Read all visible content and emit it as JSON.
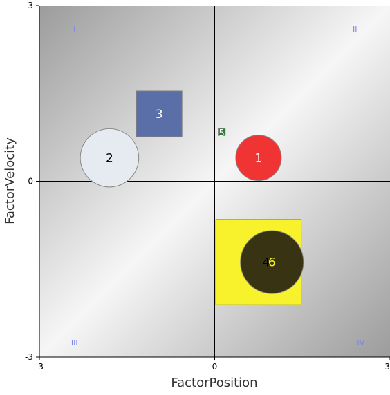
{
  "chart_data": {
    "type": "bubble",
    "xlabel": "FactorPosition",
    "ylabel": "FactorVelocity",
    "xlim": [
      -3,
      3
    ],
    "ylim": [
      -3,
      3
    ],
    "x_ticks": [
      "-3",
      "0",
      "3"
    ],
    "y_ticks": [
      "-3",
      "0",
      "3"
    ],
    "quadrant_labels": [
      {
        "label": "I",
        "x": -2.4,
        "y": 2.6
      },
      {
        "label": "II",
        "x": 2.4,
        "y": 2.6
      },
      {
        "label": "III",
        "x": -2.4,
        "y": -2.75
      },
      {
        "label": "IV",
        "x": 2.5,
        "y": -2.75
      }
    ],
    "points": [
      {
        "label": "1",
        "x": 0.75,
        "y": 0.4,
        "shape": "circle",
        "size": 0.39,
        "color": "#f03434",
        "label_color": "#ffffff"
      },
      {
        "label": "2",
        "x": -1.8,
        "y": 0.4,
        "shape": "circle",
        "size": 0.5,
        "color": "#e6ebf1",
        "label_color": "#000000"
      },
      {
        "label": "3",
        "x": -0.95,
        "y": 1.15,
        "shape": "square",
        "size": 0.39,
        "color": "#5a6ea8",
        "label_color": "#ffffff"
      },
      {
        "label": "4",
        "x": 0.75,
        "y": -1.38,
        "shape": "square",
        "size": 0.73,
        "color": "#f7f22b",
        "label_color": "#000000"
      },
      {
        "label": "5",
        "x": 0.12,
        "y": 0.84,
        "shape": "square",
        "size": 0.06,
        "color": "#2e7d32",
        "label_color": "#ffffff"
      },
      {
        "label": "6",
        "x": 0.98,
        "y": -1.38,
        "shape": "circle",
        "size": 0.54,
        "color": "#383413",
        "label_color": "#f7f22b"
      }
    ]
  }
}
